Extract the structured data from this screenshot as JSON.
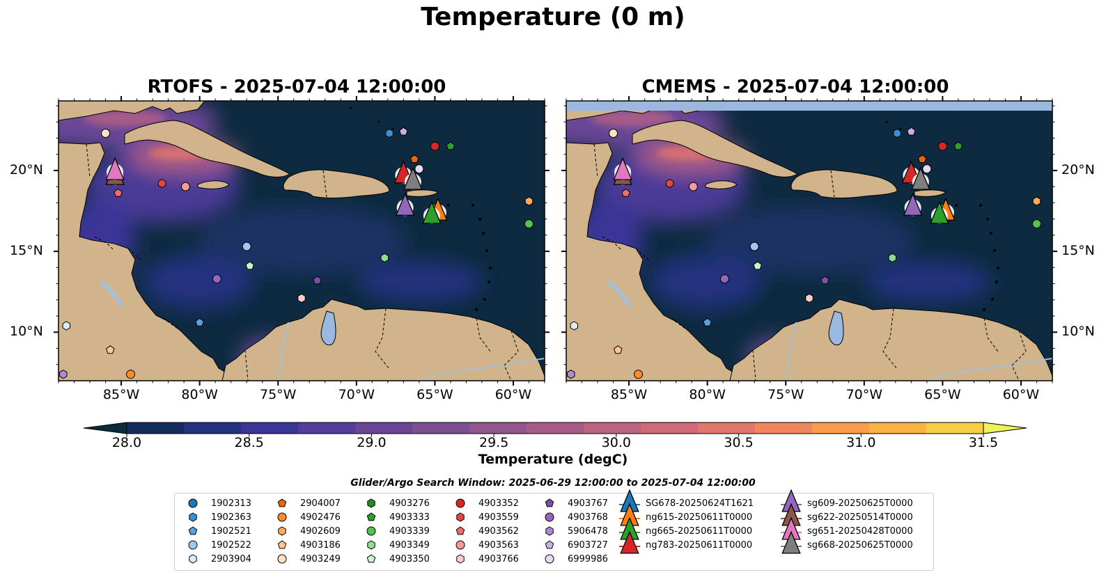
{
  "figure": {
    "title": "Temperature (0 m)",
    "search_window": "Glider/Argo Search Window: 2025-06-29 12:00:00 to 2025-07-04 12:00:00"
  },
  "panels": [
    {
      "title": "RTOFS - 2025-07-04 12:00:00"
    },
    {
      "title": "CMEMS - 2025-07-04 12:00:00"
    }
  ],
  "axes": {
    "lon_ticks": [
      "85°W",
      "80°W",
      "75°W",
      "70°W",
      "65°W",
      "60°W"
    ],
    "lon_tick_values": [
      -85,
      -80,
      -75,
      -70,
      -65,
      -60
    ],
    "lat_ticks": [
      "20°N",
      "15°N",
      "10°N"
    ],
    "lat_tick_values": [
      20,
      15,
      10
    ],
    "lon_range": [
      -89,
      -58
    ],
    "lat_range": [
      7,
      24.3
    ]
  },
  "colorbar": {
    "label": "Temperature (degC)",
    "ticks": [
      "28.0",
      "28.5",
      "29.0",
      "29.5",
      "30.0",
      "30.5",
      "31.0",
      "31.5"
    ],
    "tick_values": [
      28.0,
      28.5,
      29.0,
      29.5,
      30.0,
      30.5,
      31.0,
      31.5
    ],
    "range": [
      28.0,
      31.5
    ],
    "extend": "both",
    "colormap": "thermal",
    "colors": [
      "#0b2a3f",
      "#122c5c",
      "#22327e",
      "#3a3697",
      "#553d9d",
      "#6a4697",
      "#7e4e93",
      "#92558d",
      "#a65c87",
      "#bb6380",
      "#cf6b76",
      "#e17768",
      "#ee875a",
      "#f79d4c",
      "#f9b243",
      "#f6cf46",
      "#eff05c"
    ]
  },
  "floats": [
    {
      "id": "1902313",
      "marker": "circle",
      "color": "#1f77b4",
      "lon": null,
      "lat": null
    },
    {
      "id": "1902363",
      "marker": "hexagon",
      "color": "#3b8ed0",
      "lon": -67.9,
      "lat": 22.3
    },
    {
      "id": "1902521",
      "marker": "pentagon",
      "color": "#5a9fe0",
      "lon": -80.0,
      "lat": 10.6
    },
    {
      "id": "1902522",
      "marker": "circle",
      "color": "#9ec8ef",
      "lon": -77.0,
      "lat": 15.3
    },
    {
      "id": "2903904",
      "marker": "hexagon",
      "color": "#d8ebfb",
      "lon": -88.5,
      "lat": 10.4
    },
    {
      "id": "2904007",
      "marker": "pentagon",
      "color": "#e8660a",
      "lon": -66.3,
      "lat": 20.7
    },
    {
      "id": "4902476",
      "marker": "circle",
      "color": "#ff8c28",
      "lon": -84.4,
      "lat": 7.4
    },
    {
      "id": "4902609",
      "marker": "hexagon",
      "color": "#ffab5e",
      "lon": -59.0,
      "lat": 18.1
    },
    {
      "id": "4903186",
      "marker": "pentagon",
      "color": "#ffc690",
      "lon": -85.7,
      "lat": 8.9
    },
    {
      "id": "4903249",
      "marker": "circle",
      "color": "#ffe0c0",
      "lon": -86.0,
      "lat": 22.3
    },
    {
      "id": "4903276",
      "marker": "hexagon",
      "color": "#228b22",
      "lon": null,
      "lat": null
    },
    {
      "id": "4903333",
      "marker": "pentagon",
      "color": "#2ca02c",
      "lon": -64.0,
      "lat": 21.5
    },
    {
      "id": "4903339",
      "marker": "circle",
      "color": "#55c155",
      "lon": -59.0,
      "lat": 16.7
    },
    {
      "id": "4903349",
      "marker": "hexagon",
      "color": "#8fdc8f",
      "lon": -68.2,
      "lat": 14.6
    },
    {
      "id": "4903350",
      "marker": "pentagon",
      "color": "#c8f4c8",
      "lon": -76.8,
      "lat": 14.1
    },
    {
      "id": "4903352",
      "marker": "circle",
      "color": "#d62728",
      "lon": -65.0,
      "lat": 21.5
    },
    {
      "id": "4903559",
      "marker": "hexagon",
      "color": "#e04848",
      "lon": -82.4,
      "lat": 19.2
    },
    {
      "id": "4903562",
      "marker": "pentagon",
      "color": "#ec6e6e",
      "lon": -85.2,
      "lat": 18.6
    },
    {
      "id": "4903563",
      "marker": "circle",
      "color": "#f59a9a",
      "lon": -80.9,
      "lat": 19.0
    },
    {
      "id": "4903766",
      "marker": "hexagon",
      "color": "#ffcccc",
      "lon": -73.5,
      "lat": 12.1
    },
    {
      "id": "4903767",
      "marker": "pentagon",
      "color": "#7f4fa8",
      "lon": -72.5,
      "lat": 13.2
    },
    {
      "id": "4903768",
      "marker": "circle",
      "color": "#9467bd",
      "lon": -78.9,
      "lat": 13.3
    },
    {
      "id": "5906478",
      "marker": "hexagon",
      "color": "#ad8ad1",
      "lon": -88.7,
      "lat": 7.4
    },
    {
      "id": "6903727",
      "marker": "pentagon",
      "color": "#c9b0e5",
      "lon": -67.0,
      "lat": 22.4
    },
    {
      "id": "6999986",
      "marker": "circle",
      "color": "#e6d8f6",
      "lon": -66.0,
      "lat": 20.1
    }
  ],
  "gliders": [
    {
      "id": "SG678-20250624T1621",
      "color": "#1f77b4",
      "lon": null,
      "lat": null
    },
    {
      "id": "ng615-20250611T0000",
      "color": "#ff7f0e",
      "lon": -64.8,
      "lat": 17.4
    },
    {
      "id": "ng665-20250611T0000",
      "color": "#2ca02c",
      "lon": -65.2,
      "lat": 17.2
    },
    {
      "id": "ng783-20250611T0000",
      "color": "#d62728",
      "lon": -67.0,
      "lat": 19.7
    },
    {
      "id": "sg609-20250625T0000",
      "color": "#9467bd",
      "lon": -66.9,
      "lat": 17.7
    },
    {
      "id": "sg622-20250514T0000",
      "color": "#8c564b",
      "lon": -85.4,
      "lat": 19.6
    },
    {
      "id": "sg651-20250428T0000",
      "color": "#e377c2",
      "lon": -85.4,
      "lat": 19.9
    },
    {
      "id": "sg668-20250625T0000",
      "color": "#7f7f7f",
      "lon": -66.4,
      "lat": 19.3
    }
  ],
  "map_colors": {
    "land": "#d2b48c",
    "lake": "#9ab8e0",
    "river": "#a7c0d8",
    "missing_band": "#9ab8e0",
    "border": "#000000"
  }
}
